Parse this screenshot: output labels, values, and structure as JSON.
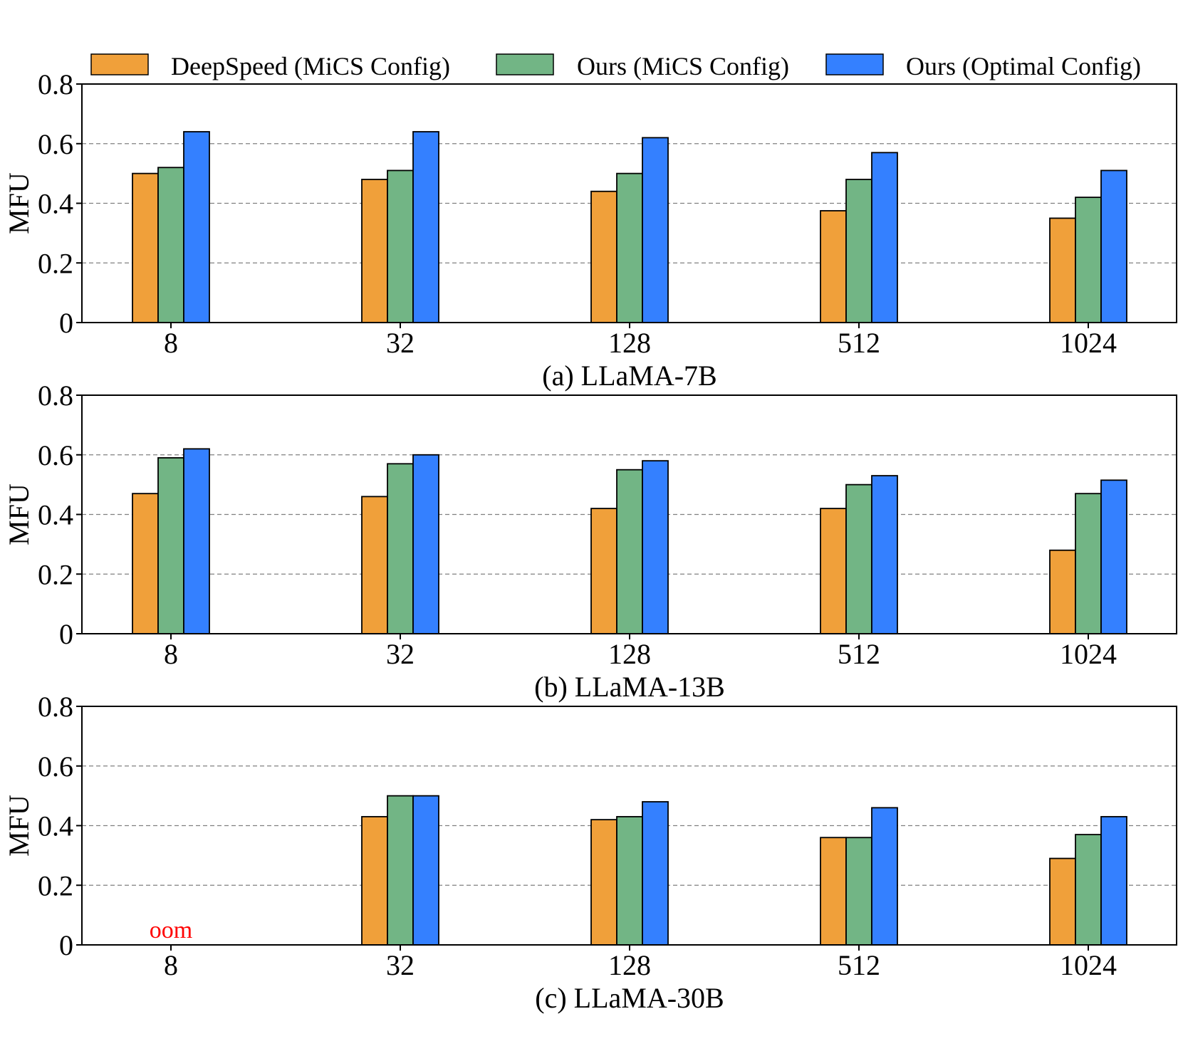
{
  "legend": [
    {
      "name": "DeepSpeed (MiCS Config)",
      "color": "#F0A03A"
    },
    {
      "name": "Ours (MiCS Config)",
      "color": "#72B585"
    },
    {
      "name": "Ours (Optimal Config)",
      "color": "#3480FF"
    }
  ],
  "chart_data": [
    {
      "type": "bar",
      "title": "(a) LLaMA-7B",
      "xlabel": "",
      "ylabel": "MFU",
      "categories": [
        "8",
        "32",
        "128",
        "512",
        "1024"
      ],
      "ylim": [
        0,
        0.8
      ],
      "yticks": [
        "0",
        "0.2",
        "0.4",
        "0.6",
        "0.8"
      ],
      "grid": true,
      "series": [
        {
          "name": "DeepSpeed (MiCS Config)",
          "values": [
            0.5,
            0.48,
            0.44,
            0.375,
            0.35
          ]
        },
        {
          "name": "Ours (MiCS Config)",
          "values": [
            0.52,
            0.51,
            0.5,
            0.48,
            0.42
          ]
        },
        {
          "name": "Ours (Optimal Config)",
          "values": [
            0.64,
            0.64,
            0.62,
            0.57,
            0.51
          ]
        }
      ],
      "annotations": []
    },
    {
      "type": "bar",
      "title": "(b) LLaMA-13B",
      "xlabel": "",
      "ylabel": "MFU",
      "categories": [
        "8",
        "32",
        "128",
        "512",
        "1024"
      ],
      "ylim": [
        0,
        0.8
      ],
      "yticks": [
        "0",
        "0.2",
        "0.4",
        "0.6",
        "0.8"
      ],
      "grid": true,
      "series": [
        {
          "name": "DeepSpeed (MiCS Config)",
          "values": [
            0.47,
            0.46,
            0.42,
            0.42,
            0.28
          ]
        },
        {
          "name": "Ours (MiCS Config)",
          "values": [
            0.59,
            0.57,
            0.55,
            0.5,
            0.47
          ]
        },
        {
          "name": "Ours (Optimal Config)",
          "values": [
            0.62,
            0.6,
            0.58,
            0.53,
            0.515
          ]
        }
      ],
      "annotations": []
    },
    {
      "type": "bar",
      "title": "(c) LLaMA-30B",
      "xlabel": "",
      "ylabel": "MFU",
      "categories": [
        "8",
        "32",
        "128",
        "512",
        "1024"
      ],
      "ylim": [
        0,
        0.8
      ],
      "yticks": [
        "0",
        "0.2",
        "0.4",
        "0.6",
        "0.8"
      ],
      "grid": true,
      "series": [
        {
          "name": "DeepSpeed (MiCS Config)",
          "values": [
            null,
            0.43,
            0.42,
            0.36,
            0.29
          ]
        },
        {
          "name": "Ours (MiCS Config)",
          "values": [
            null,
            0.5,
            0.43,
            0.36,
            0.37
          ]
        },
        {
          "name": "Ours (Optimal Config)",
          "values": [
            null,
            0.5,
            0.48,
            0.46,
            0.43
          ]
        }
      ],
      "annotations": [
        {
          "text": "oom",
          "category": "8",
          "color": "#FF0000"
        }
      ]
    }
  ]
}
